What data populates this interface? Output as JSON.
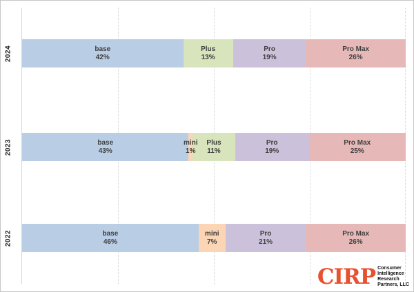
{
  "chart_data": {
    "type": "bar",
    "variant": "horizontal-stacked-100pct",
    "title": "",
    "xlabel": "",
    "ylabel": "",
    "categories": [
      "2024",
      "2023",
      "2022"
    ],
    "series": [
      {
        "name": "base",
        "values": [
          42,
          43,
          46
        ]
      },
      {
        "name": "mini",
        "values": [
          0,
          1,
          7
        ]
      },
      {
        "name": "Plus",
        "values": [
          13,
          11,
          0
        ]
      },
      {
        "name": "Pro",
        "values": [
          19,
          19,
          21
        ]
      },
      {
        "name": "Pro Max",
        "values": [
          26,
          25,
          26
        ]
      }
    ],
    "value_unit": "%",
    "xlim": [
      0,
      100
    ],
    "gridlines_pct": [
      25,
      50,
      75,
      100
    ],
    "grid": "dashed-vertical",
    "legend": "none",
    "colors": {
      "base": "#b9cde5",
      "mini": "#fcd5b4",
      "Plus": "#d7e4bc",
      "Pro": "#ccc1da",
      "Pro Max": "#e6b9b8"
    },
    "rows": [
      {
        "year": "2024",
        "segments": [
          {
            "name": "base",
            "pct": 42,
            "pct_label": "42%",
            "color": "#b9cde5"
          },
          {
            "name": "Plus",
            "pct": 13,
            "pct_label": "13%",
            "color": "#d7e4bc"
          },
          {
            "name": "Pro",
            "pct": 19,
            "pct_label": "19%",
            "color": "#ccc1da"
          },
          {
            "name": "Pro Max",
            "pct": 26,
            "pct_label": "26%",
            "color": "#e6b9b8"
          }
        ]
      },
      {
        "year": "2023",
        "segments": [
          {
            "name": "base",
            "pct": 43,
            "pct_label": "43%",
            "color": "#b9cde5"
          },
          {
            "name": "mini",
            "pct": 1,
            "pct_label": "1%",
            "color": "#fcd5b4"
          },
          {
            "name": "Plus",
            "pct": 11,
            "pct_label": "11%",
            "color": "#d7e4bc"
          },
          {
            "name": "Pro",
            "pct": 19,
            "pct_label": "19%",
            "color": "#ccc1da"
          },
          {
            "name": "Pro Max",
            "pct": 25,
            "pct_label": "25%",
            "color": "#e6b9b8"
          }
        ]
      },
      {
        "year": "2022",
        "segments": [
          {
            "name": "base",
            "pct": 46,
            "pct_label": "46%",
            "color": "#b9cde5"
          },
          {
            "name": "mini",
            "pct": 7,
            "pct_label": "7%",
            "color": "#fcd5b4"
          },
          {
            "name": "Pro",
            "pct": 21,
            "pct_label": "21%",
            "color": "#ccc1da"
          },
          {
            "name": "Pro Max",
            "pct": 26,
            "pct_label": "26%",
            "color": "#e6b9b8"
          }
        ]
      }
    ]
  },
  "logo": {
    "brand": "CIRP",
    "brand_color": "#e8512f",
    "lines": [
      "Consumer",
      "Intelligence",
      "Research",
      "Partners, LLC"
    ]
  }
}
